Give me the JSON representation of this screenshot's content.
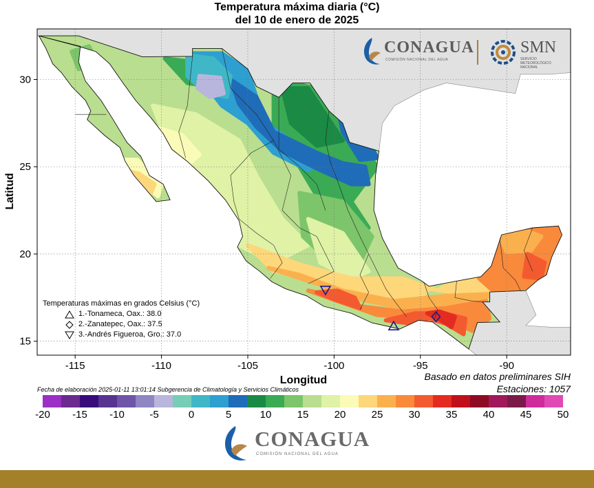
{
  "title": {
    "line1": "Temperatura máxima diaria (°C)",
    "line2": "del 10 de enero de 2025"
  },
  "axes": {
    "xlabel": "Longitud",
    "ylabel": "Latitud",
    "x_ticks": [
      "-115",
      "-110",
      "-105",
      "-100",
      "-95",
      "-90"
    ],
    "y_ticks": [
      "30",
      "25",
      "20",
      "15"
    ],
    "x_range": [
      -117.2,
      -86.3
    ],
    "y_range": [
      14.2,
      32.9
    ],
    "grid": true
  },
  "legend": {
    "title": "Temperaturas máximas en grados Celsius (°C)",
    "entries": [
      {
        "symbol": "triangle-up",
        "text": "1.-Tonameca, Oax.: 38.0",
        "lon": -96.55,
        "lat": 15.85
      },
      {
        "symbol": "diamond",
        "text": "2.-Zanatepec, Oax.: 37.5",
        "lon": -94.1,
        "lat": 16.4
      },
      {
        "symbol": "triangle-down",
        "text": "3.-Andrés Figueroa, Gro.: 37.0",
        "lon": -100.5,
        "lat": 17.95
      }
    ]
  },
  "note_preliminary": "Basado en datos preliminares SIH",
  "stations": "Estaciones: 1057",
  "credit": "Fecha de elaboración 2025-01-11 13:01:14 Subgerencia de Climatología y Servicios Climáticos",
  "colorbar": {
    "labels": [
      "-20",
      "-15",
      "-10",
      "-5",
      "0",
      "5",
      "10",
      "15",
      "20",
      "25",
      "30",
      "35",
      "40",
      "45",
      "50"
    ],
    "min": -20,
    "max": 50,
    "colors": [
      "#9b2fc6",
      "#6a2a8f",
      "#3a0b7a",
      "#56348f",
      "#6f55a8",
      "#8f86c2",
      "#b8b6dc",
      "#77cdb5",
      "#3fb7c6",
      "#2d9fd0",
      "#1f6cb8",
      "#1a8a45",
      "#3aaa55",
      "#7cc56a",
      "#b9de8f",
      "#dff2a6",
      "#fbfbb8",
      "#fdd77a",
      "#fbb04e",
      "#f98a3c",
      "#f45a30",
      "#e42b21",
      "#c0101c",
      "#8e0b24",
      "#a0195a",
      "#7a1a48",
      "#cf2b9b",
      "#e04ab4"
    ]
  },
  "logos": {
    "conagua": "CONAGUA",
    "conagua_sub": "COMISIÓN NACIONAL DEL AGUA",
    "smn": "SMN",
    "smn_sub": "SERVICIO METEOROLÓGICO NACIONAL"
  },
  "colors": {
    "land_no_data": "#e1e1e1",
    "sea": "#ffffff",
    "footer": "#a5802b"
  }
}
